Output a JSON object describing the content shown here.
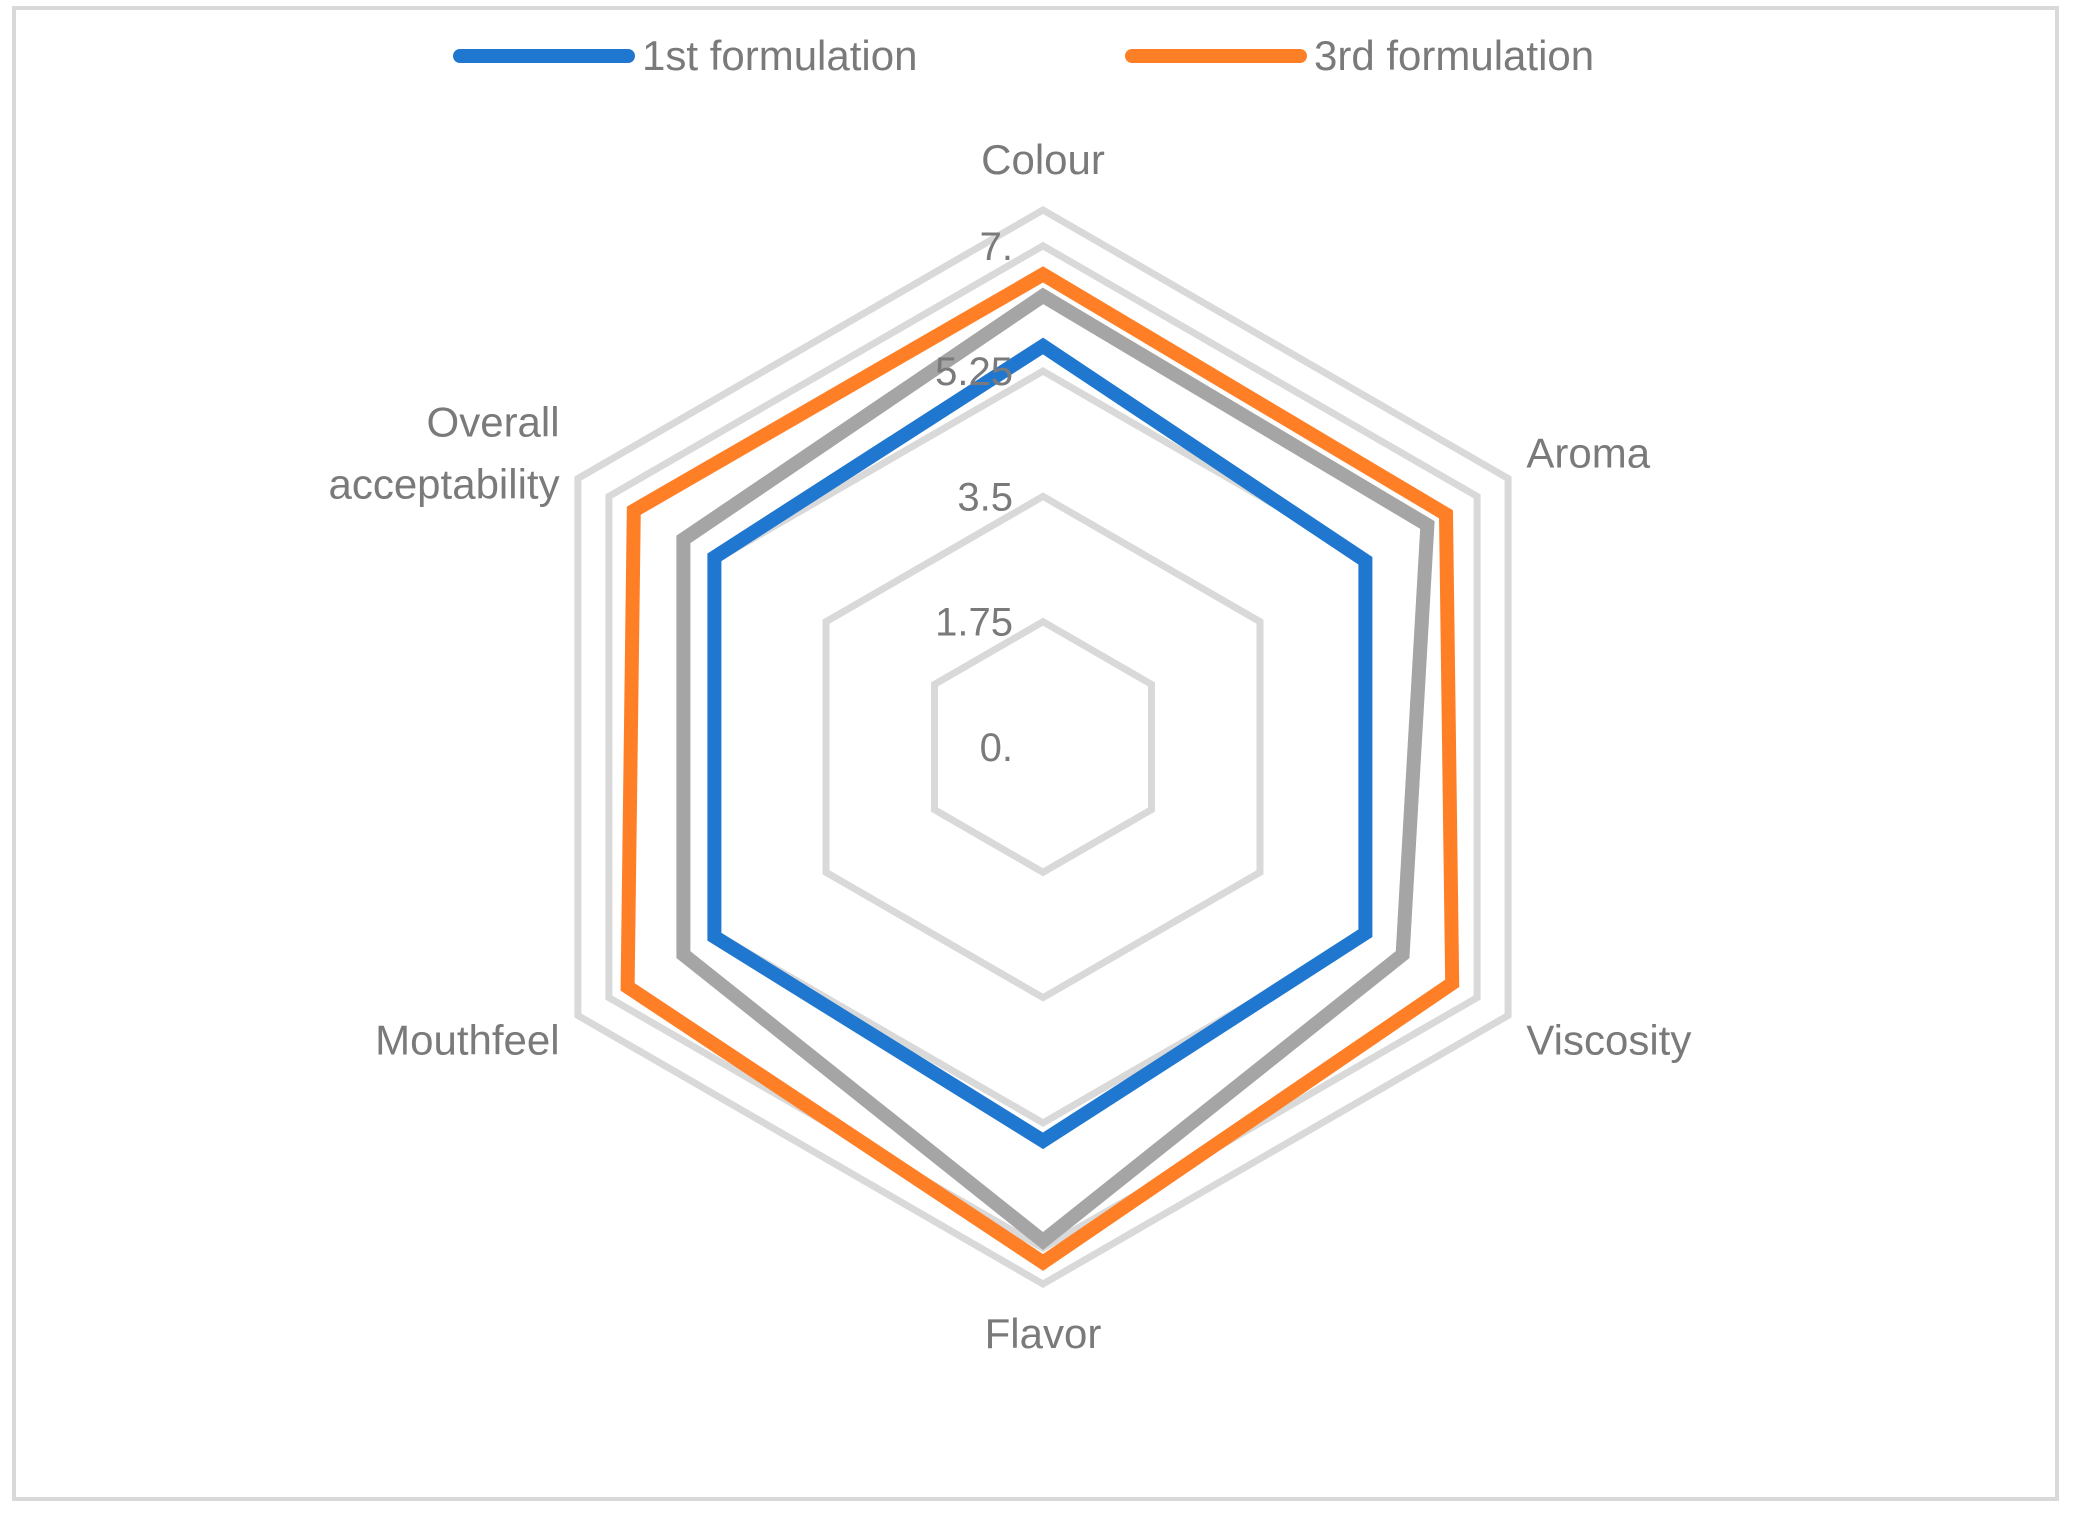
{
  "chart_data": {
    "type": "radar",
    "axes": [
      "Colour",
      "Aroma",
      "Viscosity",
      "Flavor",
      "Mouthfeel",
      "Overall acceptability"
    ],
    "axis_label_lines": [
      [
        "Colour"
      ],
      [
        "Aroma"
      ],
      [
        "Viscosity"
      ],
      [
        "Flavor"
      ],
      [
        "Mouthfeel"
      ],
      [
        "Overall",
        "acceptability"
      ]
    ],
    "ticks": [
      0,
      1.75,
      3.5,
      5.25,
      7
    ],
    "tick_labels": [
      "0.",
      "1.75",
      "3.5",
      "5.25",
      "7."
    ],
    "range": [
      0,
      7.5
    ],
    "grid": true,
    "legend": {
      "position": "top"
    },
    "series": [
      {
        "name": "1st formulation",
        "color": "#1f77d0",
        "values": [
          5.6,
          5.2,
          5.2,
          5.5,
          5.3,
          5.3
        ],
        "in_legend": true
      },
      {
        "name": "",
        "color": "#a5a5a5",
        "values": [
          6.3,
          6.2,
          5.8,
          6.9,
          5.8,
          5.8
        ],
        "in_legend": false
      },
      {
        "name": "3rd formulation",
        "color": "#ff7f27",
        "values": [
          6.6,
          6.5,
          6.6,
          7.2,
          6.7,
          6.6
        ],
        "in_legend": true
      }
    ]
  }
}
